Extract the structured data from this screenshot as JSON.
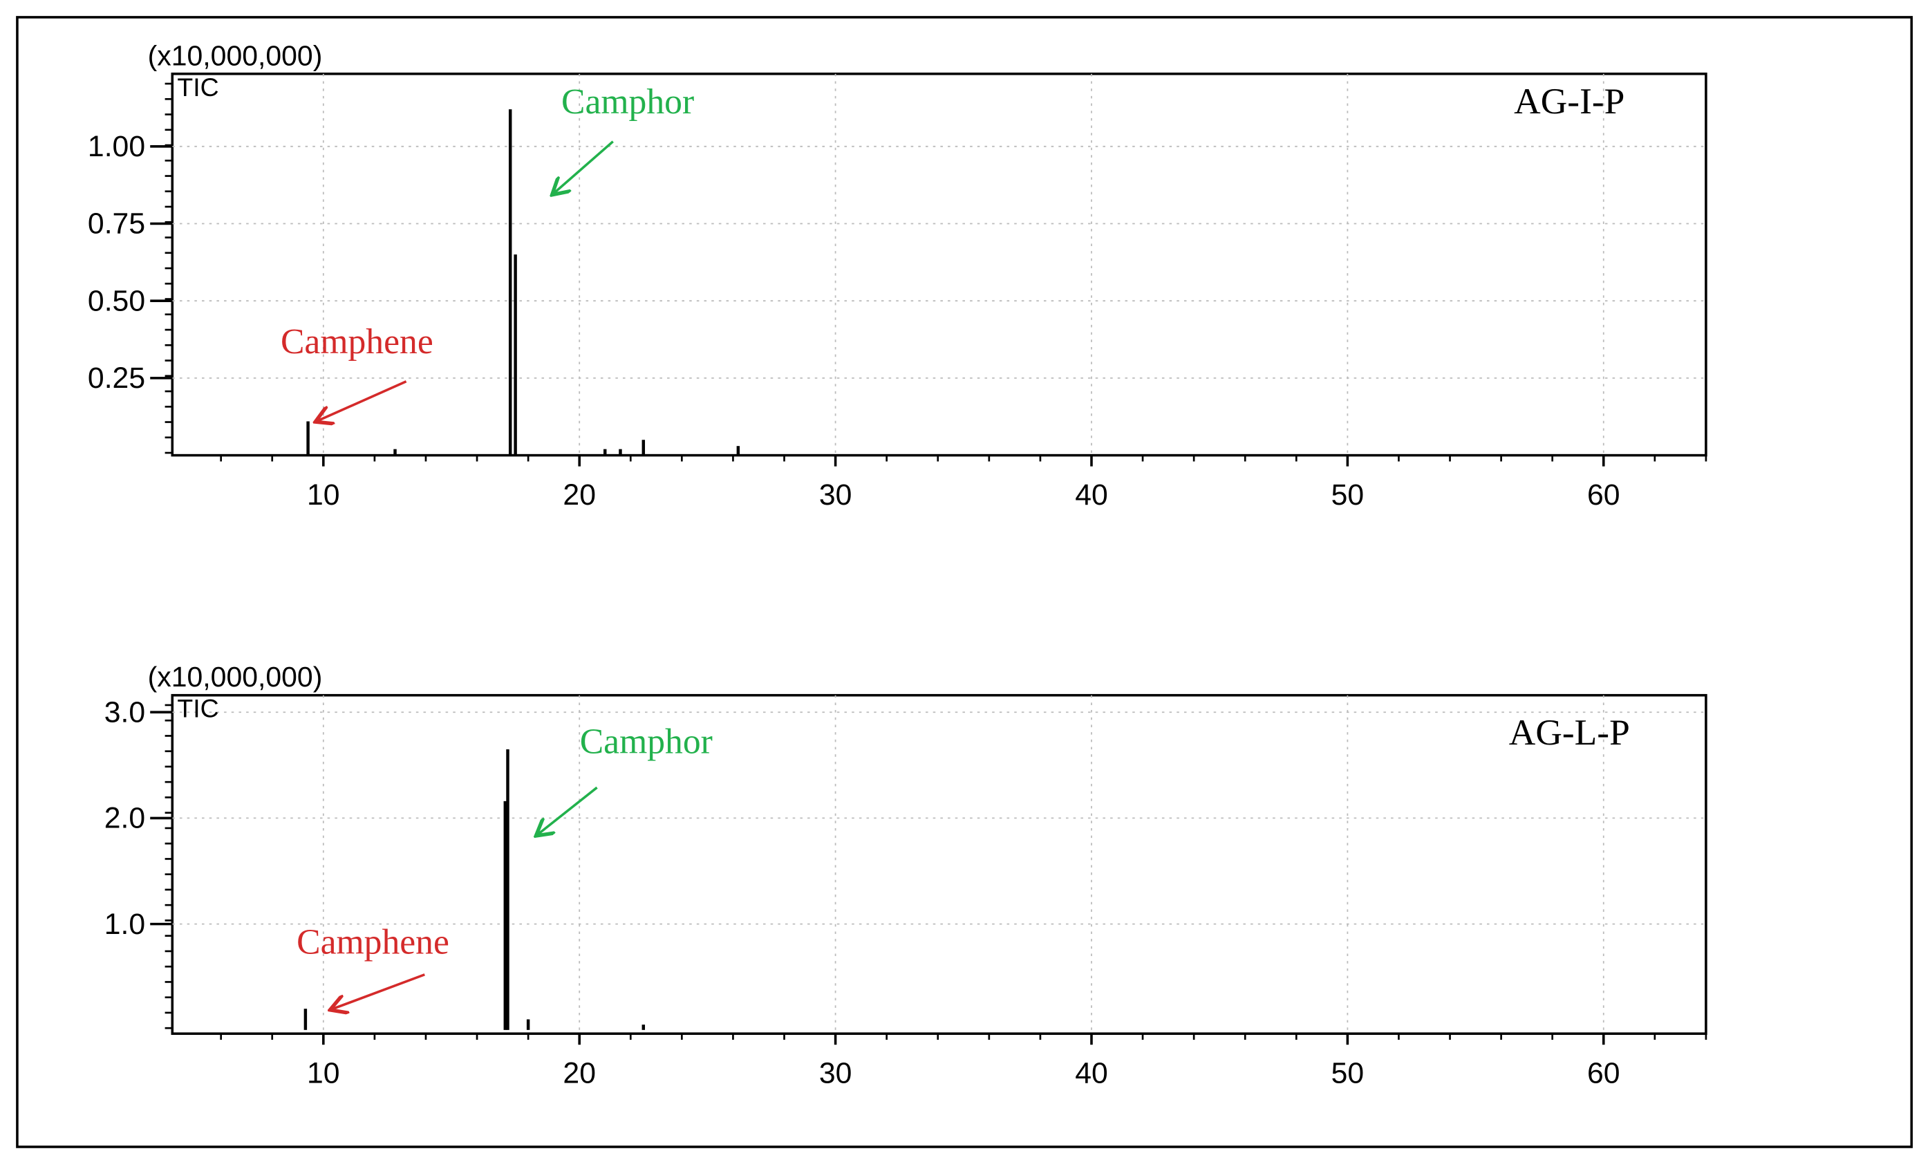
{
  "chart_data": [
    {
      "type": "stick",
      "label": "AG-I-P",
      "multiplier": "(x10,000,000)",
      "trace": "TIC",
      "annotations": [
        {
          "text": "Camphor",
          "color": "#22b14c"
        },
        {
          "text": "Camphene",
          "color": "#d42a2a"
        }
      ],
      "x": [
        9.4,
        12.8,
        17.3,
        17.5,
        21.0,
        21.6,
        22.5,
        26.2
      ],
      "values": [
        0.11,
        0.02,
        1.12,
        0.65,
        0.02,
        0.02,
        0.05,
        0.03
      ],
      "color": "#000000",
      "xlim": [
        4.1,
        64
      ],
      "xticks": [
        10,
        20,
        30,
        40,
        50,
        60
      ],
      "ylim": [
        0,
        1.235
      ],
      "yticks": [
        0.25,
        {
          "value": 0.5,
          "label": "0.50"
        },
        0.75,
        {
          "value": 1.0,
          "label": "1.00"
        }
      ],
      "grid": true
    },
    {
      "type": "stick",
      "label": "AG-L-P",
      "multiplier": "(x10,000,000)",
      "trace": "TIC",
      "annotations": [
        {
          "text": "Camphor",
          "color": "#22b14c"
        },
        {
          "text": "Camphene",
          "color": "#d42a2a"
        }
      ],
      "x": [
        9.3,
        17.1,
        17.2,
        18.0,
        22.5
      ],
      "values": [
        0.2,
        2.16,
        2.65,
        0.1,
        0.05
      ],
      "color": "#000000",
      "xlim": [
        4.1,
        64
      ],
      "xticks": [
        10,
        20,
        30,
        40,
        50,
        60
      ],
      "ylim": [
        -0.035,
        3.16
      ],
      "yticks": [
        {
          "value": 1.0,
          "label": "1.0"
        },
        {
          "value": 2.0,
          "label": "2.0"
        },
        {
          "value": 3.0,
          "label": "3.0"
        }
      ],
      "grid": true
    }
  ]
}
